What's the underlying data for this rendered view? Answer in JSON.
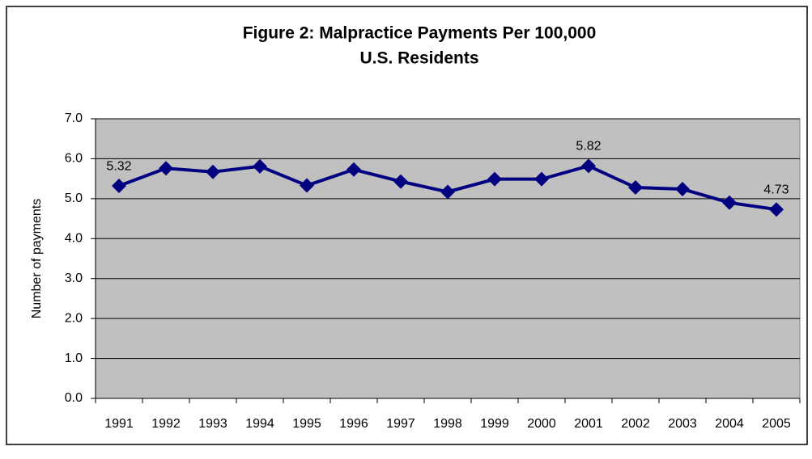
{
  "chart_data": {
    "type": "line",
    "title": [
      "Figure 2: Malpractice Payments Per 100,000",
      "U.S. Residents"
    ],
    "y_label": "Number of payments",
    "categories": [
      "1991",
      "1992",
      "1993",
      "1994",
      "1995",
      "1996",
      "1997",
      "1998",
      "1999",
      "2000",
      "2001",
      "2002",
      "2003",
      "2004",
      "2005"
    ],
    "series": [
      {
        "name": "Payments",
        "color": "#000080",
        "values": [
          5.32,
          5.76,
          5.67,
          5.81,
          5.33,
          5.73,
          5.43,
          5.17,
          5.49,
          5.49,
          5.82,
          5.28,
          5.24,
          4.9,
          4.73
        ],
        "value_labels": [
          "5.32",
          null,
          null,
          null,
          null,
          null,
          null,
          null,
          null,
          null,
          "5.82",
          null,
          null,
          null,
          "4.73"
        ]
      }
    ],
    "ylim": [
      0,
      7
    ],
    "yticks": [
      {
        "value": 0,
        "label": "0.0"
      },
      {
        "value": 1,
        "label": "1.0"
      },
      {
        "value": 2,
        "label": "2.0"
      },
      {
        "value": 3,
        "label": "3.0"
      },
      {
        "value": 4,
        "label": "4.0"
      },
      {
        "value": 5,
        "label": "5.0"
      },
      {
        "value": 6,
        "label": "6.0"
      },
      {
        "value": 7,
        "label": "7.0"
      }
    ],
    "grid": true,
    "plot_background": "#c0c0c0",
    "annotation": "`"
  }
}
